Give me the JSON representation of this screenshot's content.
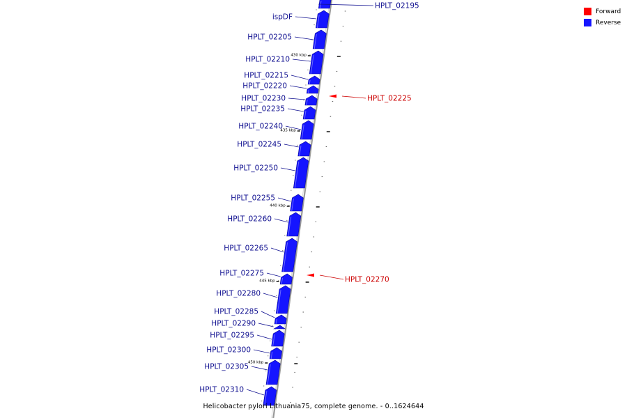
{
  "colors": {
    "forward": "#ff0000",
    "reverse": "#1515ff",
    "forward_label": "#cc0000",
    "reverse_label": "#101090",
    "backbone": "#9a9a9a"
  },
  "legend": [
    {
      "label": "Forward",
      "color": "#ff0000"
    },
    {
      "label": "Reverse",
      "color": "#1515ff"
    }
  ],
  "caption": "Helicobacter pylori Lithuania75, complete genome. - 0..1624644",
  "ticks": [
    {
      "label": "430 kbp",
      "kbp": 430
    },
    {
      "label": "435 kbp",
      "kbp": 435
    },
    {
      "label": "440 kbp",
      "kbp": 440
    },
    {
      "label": "445 kbp",
      "kbp": 445
    },
    {
      "label": "450 kbp",
      "kbp": 450
    }
  ],
  "genes": [
    {
      "name": "HPLT_02195",
      "strand": "reverse",
      "label_side": "right"
    },
    {
      "name": "ispDF",
      "strand": "reverse",
      "label_side": "left"
    },
    {
      "name": "HPLT_02205",
      "strand": "reverse",
      "label_side": "left"
    },
    {
      "name": "HPLT_02210",
      "strand": "reverse",
      "label_side": "left"
    },
    {
      "name": "HPLT_02215",
      "strand": "reverse",
      "label_side": "left"
    },
    {
      "name": "HPLT_02220",
      "strand": "reverse",
      "label_side": "left"
    },
    {
      "name": "HPLT_02225",
      "strand": "forward",
      "label_side": "right"
    },
    {
      "name": "HPLT_02230",
      "strand": "reverse",
      "label_side": "left"
    },
    {
      "name": "HPLT_02235",
      "strand": "reverse",
      "label_side": "left"
    },
    {
      "name": "HPLT_02240",
      "strand": "reverse",
      "label_side": "left"
    },
    {
      "name": "HPLT_02245",
      "strand": "reverse",
      "label_side": "left"
    },
    {
      "name": "HPLT_02250",
      "strand": "reverse",
      "label_side": "left"
    },
    {
      "name": "HPLT_02255",
      "strand": "reverse",
      "label_side": "left"
    },
    {
      "name": "HPLT_02260",
      "strand": "reverse",
      "label_side": "left"
    },
    {
      "name": "HPLT_02265",
      "strand": "reverse",
      "label_side": "left"
    },
    {
      "name": "HPLT_02270",
      "strand": "forward",
      "label_side": "right"
    },
    {
      "name": "HPLT_02275",
      "strand": "reverse",
      "label_side": "left"
    },
    {
      "name": "HPLT_02280",
      "strand": "reverse",
      "label_side": "left"
    },
    {
      "name": "HPLT_02285",
      "strand": "reverse",
      "label_side": "left"
    },
    {
      "name": "HPLT_02290",
      "strand": "reverse",
      "label_side": "left"
    },
    {
      "name": "HPLT_02295",
      "strand": "reverse",
      "label_side": "left"
    },
    {
      "name": "HPLT_02300",
      "strand": "reverse",
      "label_side": "left"
    },
    {
      "name": "HPLT_02305",
      "strand": "reverse",
      "label_side": "left"
    },
    {
      "name": "HPLT_02310",
      "strand": "reverse",
      "label_side": "left"
    }
  ]
}
